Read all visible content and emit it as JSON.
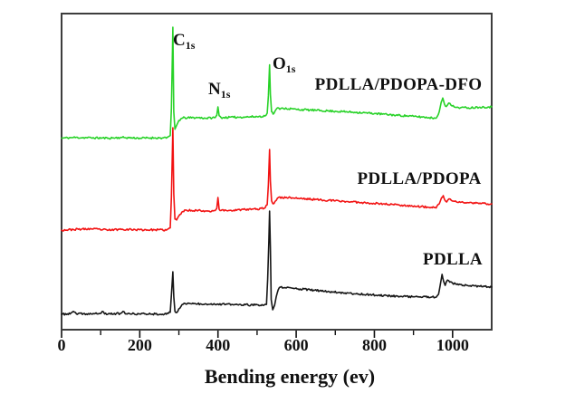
{
  "chart_data": {
    "type": "line",
    "title": "",
    "xlabel": "Bending energy (ev)",
    "ylabel": "",
    "x_range": [
      0,
      1100
    ],
    "y_range": [
      0,
      1000
    ],
    "grid": false,
    "legend_position": "inline-right",
    "axis_frame_color": "#3d3d3d",
    "tick_color": "#111111",
    "text_color": "#111111",
    "noise_amplitude": 3,
    "x_ticks": {
      "values": [
        0,
        200,
        400,
        600,
        800,
        1000
      ],
      "labels": [
        "0",
        "200",
        "400",
        "600",
        "800",
        "1000"
      ]
    },
    "x_minor_ticks": [
      100,
      300,
      500,
      700,
      900
    ],
    "peak_labels": [
      {
        "main": "C",
        "sub": "1s",
        "ev": 285
      },
      {
        "main": "N",
        "sub": "1s",
        "ev": 400
      },
      {
        "main": "O",
        "sub": "1s",
        "ev": 532
      }
    ],
    "series": [
      {
        "name": "PDLLA/PDOPA-DFO",
        "color": "#28d228",
        "seed": 11,
        "points": [
          [
            0,
            606
          ],
          [
            30,
            608
          ],
          [
            76,
            607
          ],
          [
            120,
            606
          ],
          [
            155,
            608
          ],
          [
            200,
            606
          ],
          [
            240,
            607
          ],
          [
            268,
            606
          ],
          [
            278,
            614
          ],
          [
            281,
            700
          ],
          [
            284.5,
            957
          ],
          [
            287,
            690
          ],
          [
            290,
            634
          ],
          [
            294,
            646
          ],
          [
            300,
            662
          ],
          [
            310,
            670
          ],
          [
            350,
            671
          ],
          [
            370,
            669
          ],
          [
            393,
            671
          ],
          [
            397,
            678
          ],
          [
            400,
            705
          ],
          [
            403,
            677
          ],
          [
            408,
            671
          ],
          [
            440,
            672
          ],
          [
            470,
            673
          ],
          [
            500,
            674
          ],
          [
            520,
            676
          ],
          [
            526,
            685
          ],
          [
            529,
            740
          ],
          [
            532,
            838
          ],
          [
            534,
            745
          ],
          [
            537,
            690
          ],
          [
            541,
            682
          ],
          [
            546,
            692
          ],
          [
            552,
            702
          ],
          [
            558,
            697
          ],
          [
            566,
            701
          ],
          [
            600,
            697
          ],
          [
            650,
            694
          ],
          [
            700,
            691
          ],
          [
            750,
            688
          ],
          [
            800,
            684
          ],
          [
            850,
            679
          ],
          [
            900,
            675
          ],
          [
            940,
            671
          ],
          [
            958,
            669
          ],
          [
            966,
            690
          ],
          [
            971,
            720
          ],
          [
            975,
            733
          ],
          [
            979,
            714
          ],
          [
            984,
            706
          ],
          [
            990,
            717
          ],
          [
            996,
            710
          ],
          [
            1004,
            705
          ],
          [
            1015,
            703
          ],
          [
            1040,
            702
          ],
          [
            1070,
            704
          ],
          [
            1100,
            705
          ]
        ]
      },
      {
        "name": "PDLLA/PDOPA",
        "color": "#f21212",
        "seed": 23,
        "points": [
          [
            0,
            315
          ],
          [
            30,
            317
          ],
          [
            76,
            319
          ],
          [
            120,
            315
          ],
          [
            155,
            318
          ],
          [
            200,
            316
          ],
          [
            240,
            316
          ],
          [
            268,
            315
          ],
          [
            278,
            322
          ],
          [
            281,
            420
          ],
          [
            284.5,
            639
          ],
          [
            287,
            430
          ],
          [
            290,
            350
          ],
          [
            294,
            347
          ],
          [
            300,
            360
          ],
          [
            310,
            374
          ],
          [
            320,
            378
          ],
          [
            355,
            377
          ],
          [
            375,
            375
          ],
          [
            393,
            377
          ],
          [
            397,
            384
          ],
          [
            400,
            418
          ],
          [
            403,
            381
          ],
          [
            408,
            377
          ],
          [
            440,
            378
          ],
          [
            470,
            380
          ],
          [
            500,
            382
          ],
          [
            518,
            384
          ],
          [
            526,
            395
          ],
          [
            529,
            460
          ],
          [
            532,
            570
          ],
          [
            534,
            470
          ],
          [
            537,
            408
          ],
          [
            541,
            398
          ],
          [
            546,
            406
          ],
          [
            552,
            416
          ],
          [
            558,
            420
          ],
          [
            566,
            416
          ],
          [
            575,
            419
          ],
          [
            610,
            415
          ],
          [
            660,
            411
          ],
          [
            710,
            407
          ],
          [
            760,
            403
          ],
          [
            810,
            399
          ],
          [
            860,
            395
          ],
          [
            910,
            390
          ],
          [
            945,
            387
          ],
          [
            958,
            385
          ],
          [
            966,
            398
          ],
          [
            972,
            418
          ],
          [
            976,
            424
          ],
          [
            980,
            410
          ],
          [
            985,
            404
          ],
          [
            991,
            414
          ],
          [
            997,
            409
          ],
          [
            1005,
            406
          ],
          [
            1020,
            403
          ],
          [
            1050,
            401
          ],
          [
            1100,
            398
          ]
        ]
      },
      {
        "name": "PDLLA",
        "color": "#161616",
        "seed": 37,
        "points": [
          [
            0,
            49
          ],
          [
            22,
            50
          ],
          [
            30,
            58
          ],
          [
            38,
            50
          ],
          [
            76,
            50
          ],
          [
            98,
            51
          ],
          [
            104,
            58
          ],
          [
            110,
            50
          ],
          [
            150,
            51
          ],
          [
            157,
            58
          ],
          [
            163,
            50
          ],
          [
            200,
            50
          ],
          [
            240,
            50
          ],
          [
            268,
            49
          ],
          [
            278,
            55
          ],
          [
            281,
            110
          ],
          [
            284.5,
            183
          ],
          [
            287,
            105
          ],
          [
            290,
            58
          ],
          [
            294,
            54
          ],
          [
            300,
            66
          ],
          [
            308,
            79
          ],
          [
            316,
            83
          ],
          [
            355,
            82
          ],
          [
            400,
            81
          ],
          [
            450,
            79
          ],
          [
            495,
            78
          ],
          [
            515,
            77
          ],
          [
            524,
            80
          ],
          [
            527,
            160
          ],
          [
            530,
            280
          ],
          [
            532,
            375
          ],
          [
            534,
            260
          ],
          [
            536,
            95
          ],
          [
            540,
            63
          ],
          [
            545,
            78
          ],
          [
            549,
            105
          ],
          [
            554,
            126
          ],
          [
            560,
            135
          ],
          [
            572,
            133
          ],
          [
            610,
            129
          ],
          [
            660,
            123
          ],
          [
            710,
            118
          ],
          [
            760,
            113
          ],
          [
            810,
            109
          ],
          [
            860,
            106
          ],
          [
            910,
            104
          ],
          [
            945,
            103
          ],
          [
            958,
            103
          ],
          [
            964,
            112
          ],
          [
            969,
            145
          ],
          [
            973,
            175
          ],
          [
            977,
            153
          ],
          [
            981,
            140
          ],
          [
            987,
            157
          ],
          [
            993,
            150
          ],
          [
            1000,
            147
          ],
          [
            1010,
            143
          ],
          [
            1040,
            139
          ],
          [
            1070,
            137
          ],
          [
            1100,
            135
          ]
        ]
      }
    ]
  }
}
